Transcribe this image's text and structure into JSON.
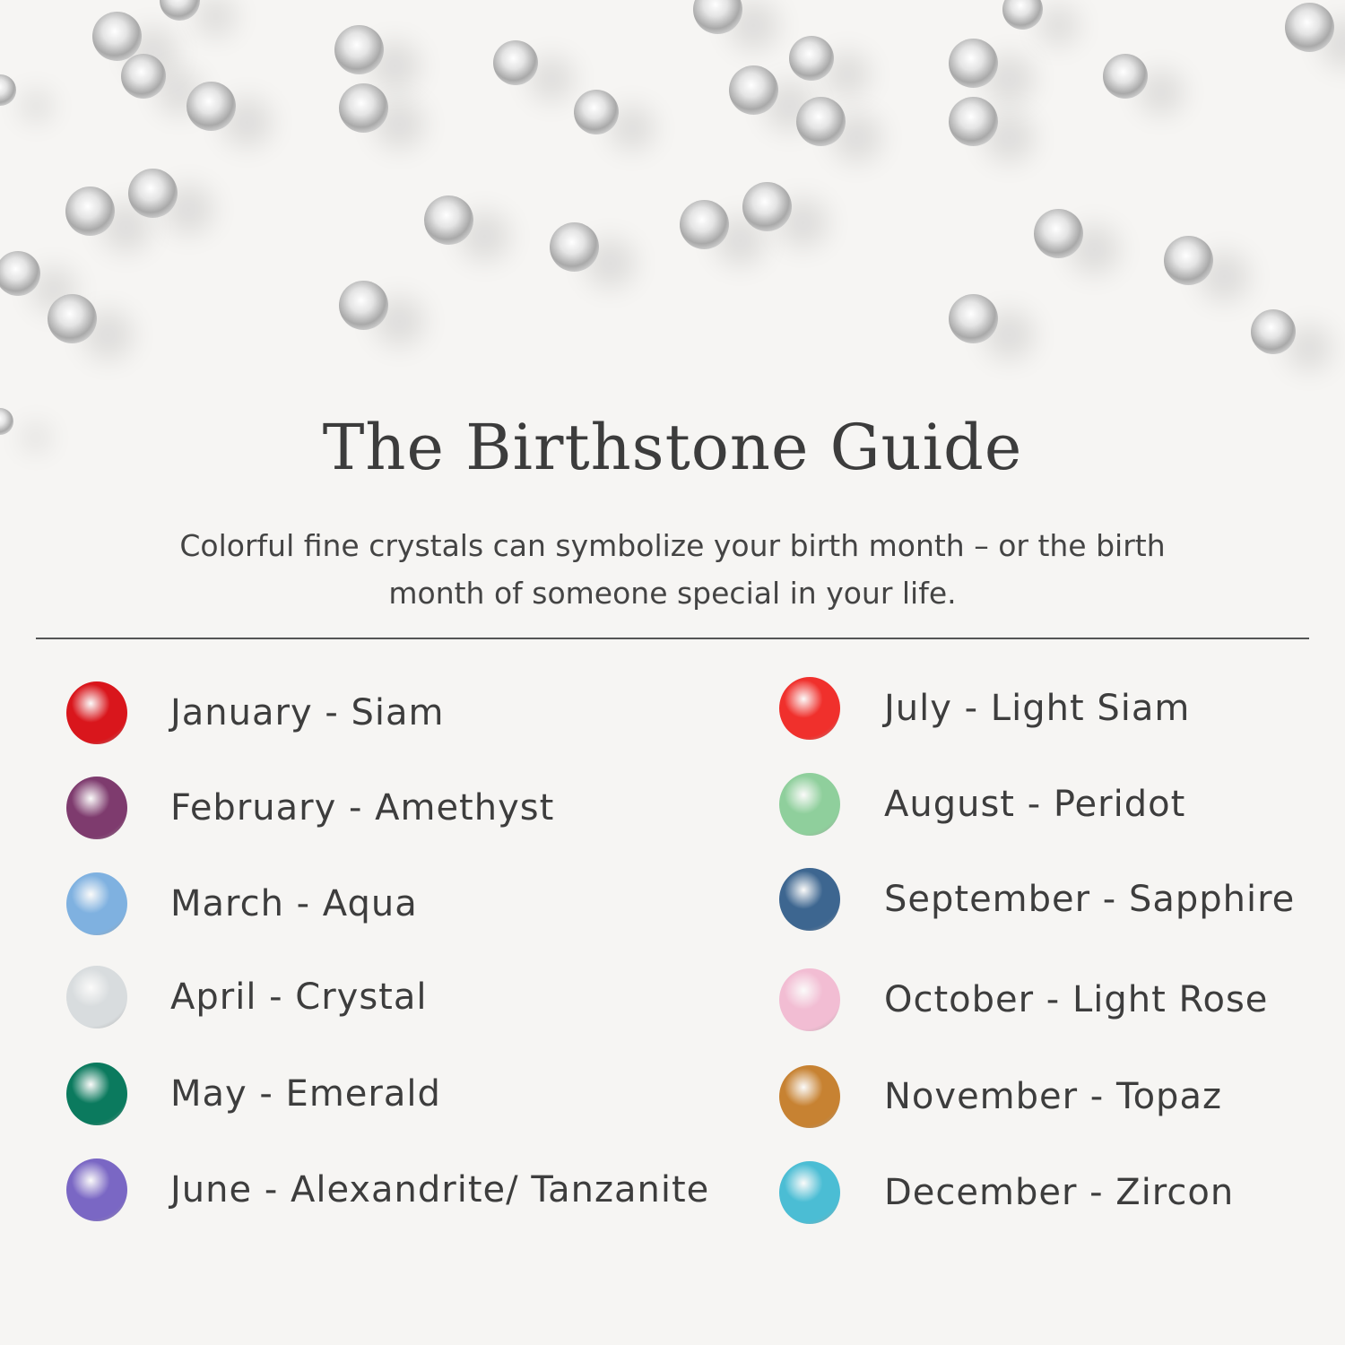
{
  "title": "The Birthstone Guide",
  "subtitle_line1": "Colorful fine crystals can symbolize your birth month – or the birth",
  "subtitle_line2": "month of someone special in your life.",
  "birthstones": [
    {
      "label": "January - Siam",
      "color": "#d9161c"
    },
    {
      "label": "February - Amethyst",
      "color": "#7e3b6e"
    },
    {
      "label": "March - Aqua",
      "color": "#7fb1e0"
    },
    {
      "label": "April - Crystal",
      "color": "#d8dcde"
    },
    {
      "label": "May - Emerald",
      "color": "#0b7a5e"
    },
    {
      "label": "June - Alexandrite/ Tanzanite",
      "color": "#7a67c4"
    },
    {
      "label": "July - Light Siam",
      "color": "#f0302c"
    },
    {
      "label": "August - Peridot",
      "color": "#8fcf9c"
    },
    {
      "label": "September - Sapphire",
      "color": "#3d6690"
    },
    {
      "label": "October - Light Rose",
      "color": "#f2bdd3"
    },
    {
      "label": "November - Topaz",
      "color": "#c78232"
    },
    {
      "label": "December - Zircon",
      "color": "#4bbdd4"
    }
  ]
}
